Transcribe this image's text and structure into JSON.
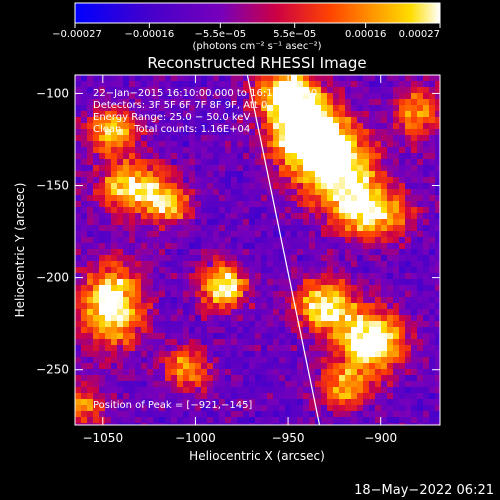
{
  "chart_data": {
    "type": "heatmap",
    "title": "Reconstructed RHESSI Image",
    "xlabel": "Heliocentric X (arcsec)",
    "ylabel": "Heliocentric Y (arcsec)",
    "xlim": [
      -1065,
      -868
    ],
    "ylim": [
      -280,
      -90
    ],
    "x_ticks": [
      -1050,
      -1000,
      -950,
      -900
    ],
    "y_ticks": [
      -100,
      -150,
      -200,
      -250
    ],
    "x_tick_labels": [
      "−1050",
      "−1000",
      "−950",
      "−900"
    ],
    "y_tick_labels": [
      "−100",
      "−150",
      "−200",
      "−250"
    ],
    "colorbar": {
      "range": [
        -0.00027,
        0.00027
      ],
      "ticks": [
        -0.00027,
        -0.00016,
        -5.5e-05,
        5.5e-05,
        0.00016,
        0.00027
      ],
      "tick_labels": [
        "−0.00027",
        "−0.00016",
        "−5.5e−05",
        "5.5e−05",
        "0.00016",
        "0.00027"
      ],
      "units_label": "(photons cm⁻² s⁻¹ asec⁻²)",
      "colormap": [
        "#0000ff",
        "#4400cc",
        "#7700bb",
        "#cc0044",
        "#ff4400",
        "#ff9900",
        "#ffdd00",
        "#ffffff"
      ]
    },
    "annotations": [
      "22−Jan−2015 16:10:00.000 to 16:15:48.000",
      "Detectors: 3F 5F 6F 7F 8F 9F, Att 0",
      "Energy Range: 25.0 − 50.0 keV",
      "Clean    Total counts: 1.16E+04"
    ],
    "peak_label": "Position of Peak = [−921,−145]",
    "peak_position": [
      -921,
      -145
    ],
    "limb_line": [
      [
        -972,
        -90
      ],
      [
        -933,
        -280
      ]
    ],
    "bright_sources": [
      {
        "x": -940,
        "y": -120,
        "intensity": 1.0,
        "sx": 14,
        "sy": 12
      },
      {
        "x": -925,
        "y": -140,
        "intensity": 0.95,
        "sx": 16,
        "sy": 14
      },
      {
        "x": -950,
        "y": -100,
        "intensity": 0.85,
        "sx": 12,
        "sy": 10
      },
      {
        "x": -905,
        "y": -165,
        "intensity": 0.8,
        "sx": 14,
        "sy": 10
      },
      {
        "x": -1035,
        "y": -150,
        "intensity": 0.75,
        "sx": 12,
        "sy": 10
      },
      {
        "x": -1045,
        "y": -120,
        "intensity": 0.7,
        "sx": 10,
        "sy": 9
      },
      {
        "x": -1015,
        "y": -160,
        "intensity": 0.65,
        "sx": 9,
        "sy": 8
      },
      {
        "x": -985,
        "y": -205,
        "intensity": 0.85,
        "sx": 9,
        "sy": 9
      },
      {
        "x": -1045,
        "y": -215,
        "intensity": 0.9,
        "sx": 12,
        "sy": 16
      },
      {
        "x": -1005,
        "y": -250,
        "intensity": 0.6,
        "sx": 9,
        "sy": 8
      },
      {
        "x": -930,
        "y": -215,
        "intensity": 0.8,
        "sx": 12,
        "sy": 10
      },
      {
        "x": -905,
        "y": -235,
        "intensity": 0.95,
        "sx": 13,
        "sy": 12
      },
      {
        "x": -920,
        "y": -260,
        "intensity": 0.6,
        "sx": 10,
        "sy": 8
      },
      {
        "x": -1060,
        "y": -270,
        "intensity": 0.55,
        "sx": 8,
        "sy": 8
      },
      {
        "x": -880,
        "y": -110,
        "intensity": 0.6,
        "sx": 8,
        "sy": 10
      }
    ],
    "grid": false
  },
  "footer": {
    "timestamp": "18−May−2022 06:21"
  }
}
